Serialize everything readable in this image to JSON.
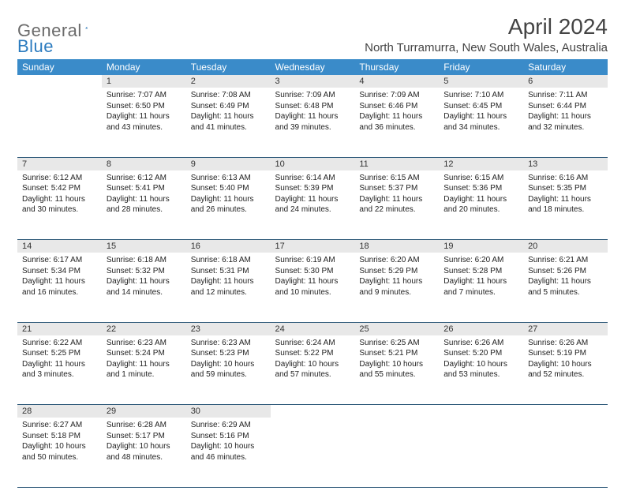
{
  "logo": {
    "text1": "General",
    "text2": "Blue"
  },
  "title": "April 2024",
  "location": "North Turramurra, New South Wales, Australia",
  "colors": {
    "header_bg": "#3a8bc9",
    "header_text": "#ffffff",
    "daynum_bg": "#e8e8e8",
    "rule": "#2f5a7a",
    "logo_gray": "#6b6b6b",
    "logo_blue": "#2b7bbf"
  },
  "day_names": [
    "Sunday",
    "Monday",
    "Tuesday",
    "Wednesday",
    "Thursday",
    "Friday",
    "Saturday"
  ],
  "weeks": [
    [
      {
        "n": "",
        "sr": "",
        "ss": "",
        "dl": ""
      },
      {
        "n": "1",
        "sr": "Sunrise: 7:07 AM",
        "ss": "Sunset: 6:50 PM",
        "dl": "Daylight: 11 hours and 43 minutes."
      },
      {
        "n": "2",
        "sr": "Sunrise: 7:08 AM",
        "ss": "Sunset: 6:49 PM",
        "dl": "Daylight: 11 hours and 41 minutes."
      },
      {
        "n": "3",
        "sr": "Sunrise: 7:09 AM",
        "ss": "Sunset: 6:48 PM",
        "dl": "Daylight: 11 hours and 39 minutes."
      },
      {
        "n": "4",
        "sr": "Sunrise: 7:09 AM",
        "ss": "Sunset: 6:46 PM",
        "dl": "Daylight: 11 hours and 36 minutes."
      },
      {
        "n": "5",
        "sr": "Sunrise: 7:10 AM",
        "ss": "Sunset: 6:45 PM",
        "dl": "Daylight: 11 hours and 34 minutes."
      },
      {
        "n": "6",
        "sr": "Sunrise: 7:11 AM",
        "ss": "Sunset: 6:44 PM",
        "dl": "Daylight: 11 hours and 32 minutes."
      }
    ],
    [
      {
        "n": "7",
        "sr": "Sunrise: 6:12 AM",
        "ss": "Sunset: 5:42 PM",
        "dl": "Daylight: 11 hours and 30 minutes."
      },
      {
        "n": "8",
        "sr": "Sunrise: 6:12 AM",
        "ss": "Sunset: 5:41 PM",
        "dl": "Daylight: 11 hours and 28 minutes."
      },
      {
        "n": "9",
        "sr": "Sunrise: 6:13 AM",
        "ss": "Sunset: 5:40 PM",
        "dl": "Daylight: 11 hours and 26 minutes."
      },
      {
        "n": "10",
        "sr": "Sunrise: 6:14 AM",
        "ss": "Sunset: 5:39 PM",
        "dl": "Daylight: 11 hours and 24 minutes."
      },
      {
        "n": "11",
        "sr": "Sunrise: 6:15 AM",
        "ss": "Sunset: 5:37 PM",
        "dl": "Daylight: 11 hours and 22 minutes."
      },
      {
        "n": "12",
        "sr": "Sunrise: 6:15 AM",
        "ss": "Sunset: 5:36 PM",
        "dl": "Daylight: 11 hours and 20 minutes."
      },
      {
        "n": "13",
        "sr": "Sunrise: 6:16 AM",
        "ss": "Sunset: 5:35 PM",
        "dl": "Daylight: 11 hours and 18 minutes."
      }
    ],
    [
      {
        "n": "14",
        "sr": "Sunrise: 6:17 AM",
        "ss": "Sunset: 5:34 PM",
        "dl": "Daylight: 11 hours and 16 minutes."
      },
      {
        "n": "15",
        "sr": "Sunrise: 6:18 AM",
        "ss": "Sunset: 5:32 PM",
        "dl": "Daylight: 11 hours and 14 minutes."
      },
      {
        "n": "16",
        "sr": "Sunrise: 6:18 AM",
        "ss": "Sunset: 5:31 PM",
        "dl": "Daylight: 11 hours and 12 minutes."
      },
      {
        "n": "17",
        "sr": "Sunrise: 6:19 AM",
        "ss": "Sunset: 5:30 PM",
        "dl": "Daylight: 11 hours and 10 minutes."
      },
      {
        "n": "18",
        "sr": "Sunrise: 6:20 AM",
        "ss": "Sunset: 5:29 PM",
        "dl": "Daylight: 11 hours and 9 minutes."
      },
      {
        "n": "19",
        "sr": "Sunrise: 6:20 AM",
        "ss": "Sunset: 5:28 PM",
        "dl": "Daylight: 11 hours and 7 minutes."
      },
      {
        "n": "20",
        "sr": "Sunrise: 6:21 AM",
        "ss": "Sunset: 5:26 PM",
        "dl": "Daylight: 11 hours and 5 minutes."
      }
    ],
    [
      {
        "n": "21",
        "sr": "Sunrise: 6:22 AM",
        "ss": "Sunset: 5:25 PM",
        "dl": "Daylight: 11 hours and 3 minutes."
      },
      {
        "n": "22",
        "sr": "Sunrise: 6:23 AM",
        "ss": "Sunset: 5:24 PM",
        "dl": "Daylight: 11 hours and 1 minute."
      },
      {
        "n": "23",
        "sr": "Sunrise: 6:23 AM",
        "ss": "Sunset: 5:23 PM",
        "dl": "Daylight: 10 hours and 59 minutes."
      },
      {
        "n": "24",
        "sr": "Sunrise: 6:24 AM",
        "ss": "Sunset: 5:22 PM",
        "dl": "Daylight: 10 hours and 57 minutes."
      },
      {
        "n": "25",
        "sr": "Sunrise: 6:25 AM",
        "ss": "Sunset: 5:21 PM",
        "dl": "Daylight: 10 hours and 55 minutes."
      },
      {
        "n": "26",
        "sr": "Sunrise: 6:26 AM",
        "ss": "Sunset: 5:20 PM",
        "dl": "Daylight: 10 hours and 53 minutes."
      },
      {
        "n": "27",
        "sr": "Sunrise: 6:26 AM",
        "ss": "Sunset: 5:19 PM",
        "dl": "Daylight: 10 hours and 52 minutes."
      }
    ],
    [
      {
        "n": "28",
        "sr": "Sunrise: 6:27 AM",
        "ss": "Sunset: 5:18 PM",
        "dl": "Daylight: 10 hours and 50 minutes."
      },
      {
        "n": "29",
        "sr": "Sunrise: 6:28 AM",
        "ss": "Sunset: 5:17 PM",
        "dl": "Daylight: 10 hours and 48 minutes."
      },
      {
        "n": "30",
        "sr": "Sunrise: 6:29 AM",
        "ss": "Sunset: 5:16 PM",
        "dl": "Daylight: 10 hours and 46 minutes."
      },
      {
        "n": "",
        "sr": "",
        "ss": "",
        "dl": ""
      },
      {
        "n": "",
        "sr": "",
        "ss": "",
        "dl": ""
      },
      {
        "n": "",
        "sr": "",
        "ss": "",
        "dl": ""
      },
      {
        "n": "",
        "sr": "",
        "ss": "",
        "dl": ""
      }
    ]
  ]
}
